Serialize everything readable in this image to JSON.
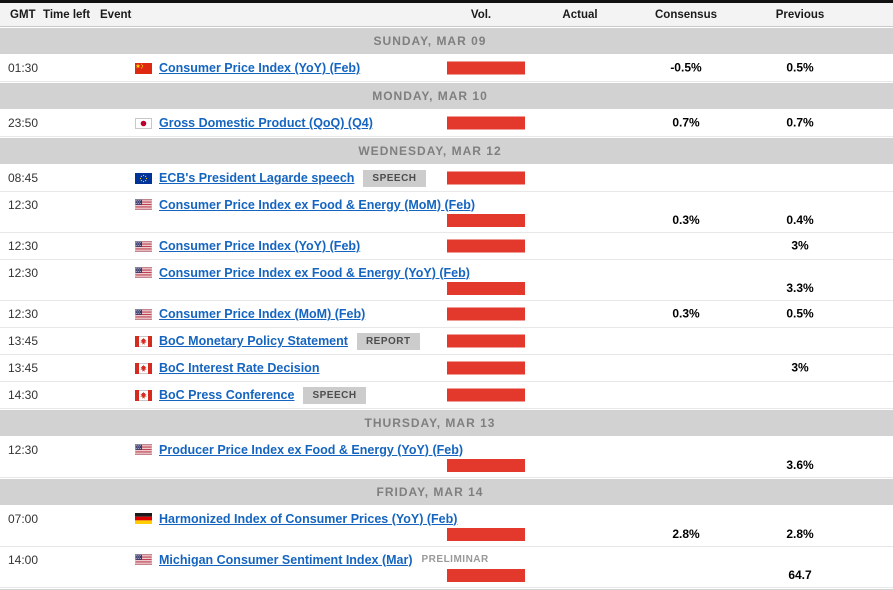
{
  "table": {
    "headers": {
      "gmt": "GMT",
      "time_left": "Time left",
      "event": "Event",
      "vol": "Vol.",
      "actual": "Actual",
      "consensus": "Consensus",
      "previous": "Previous"
    }
  },
  "colors": {
    "bar_red": "#e2392c",
    "link_blue": "#1565c0",
    "section_bg": "#d2d2d2",
    "section_text": "#7f7f7f",
    "header_bg": "#f3f3f3",
    "badge_bg": "#cccccc",
    "badge_text": "#4d4d4d",
    "prelim_text": "#999999"
  },
  "sections": [
    {
      "date": "SUNDAY, MAR 09",
      "rows": [
        {
          "time": "01:30",
          "country": "CN",
          "event": "Consumer Price Index (YoY) (Feb)",
          "badge": "",
          "badge_style": "",
          "tall": false,
          "actual": "",
          "consensus": "-0.5%",
          "previous": "0.5%"
        }
      ]
    },
    {
      "date": "MONDAY, MAR 10",
      "rows": [
        {
          "time": "23:50",
          "country": "JP",
          "event": "Gross Domestic Product (QoQ) (Q4)",
          "badge": "",
          "badge_style": "",
          "tall": false,
          "actual": "",
          "consensus": "0.7%",
          "previous": "0.7%"
        }
      ]
    },
    {
      "date": "WEDNESDAY, MAR 12",
      "rows": [
        {
          "time": "08:45",
          "country": "EU",
          "event": "ECB's President Lagarde speech",
          "badge": "SPEECH",
          "badge_style": "box",
          "tall": false,
          "actual": "",
          "consensus": "",
          "previous": ""
        },
        {
          "time": "12:30",
          "country": "US",
          "event": "Consumer Price Index ex Food & Energy (MoM) (Feb)",
          "badge": "",
          "badge_style": "",
          "tall": true,
          "actual": "",
          "consensus": "0.3%",
          "previous": "0.4%"
        },
        {
          "time": "12:30",
          "country": "US",
          "event": "Consumer Price Index (YoY) (Feb)",
          "badge": "",
          "badge_style": "",
          "tall": false,
          "actual": "",
          "consensus": "",
          "previous": "3%"
        },
        {
          "time": "12:30",
          "country": "US",
          "event": "Consumer Price Index ex Food & Energy (YoY) (Feb)",
          "badge": "",
          "badge_style": "",
          "tall": true,
          "actual": "",
          "consensus": "",
          "previous": "3.3%"
        },
        {
          "time": "12:30",
          "country": "US",
          "event": "Consumer Price Index (MoM) (Feb)",
          "badge": "",
          "badge_style": "",
          "tall": false,
          "actual": "",
          "consensus": "0.3%",
          "previous": "0.5%"
        },
        {
          "time": "13:45",
          "country": "CA",
          "event": "BoC Monetary Policy Statement",
          "badge": "REPORT",
          "badge_style": "box",
          "tall": false,
          "actual": "",
          "consensus": "",
          "previous": ""
        },
        {
          "time": "13:45",
          "country": "CA",
          "event": "BoC Interest Rate Decision",
          "badge": "",
          "badge_style": "",
          "tall": false,
          "actual": "",
          "consensus": "",
          "previous": "3%"
        },
        {
          "time": "14:30",
          "country": "CA",
          "event": "BoC Press Conference",
          "badge": "SPEECH",
          "badge_style": "box",
          "tall": false,
          "actual": "",
          "consensus": "",
          "previous": ""
        }
      ]
    },
    {
      "date": "THURSDAY, MAR 13",
      "rows": [
        {
          "time": "12:30",
          "country": "US",
          "event": "Producer Price Index ex Food & Energy (YoY) (Feb)",
          "badge": "",
          "badge_style": "",
          "tall": true,
          "actual": "",
          "consensus": "",
          "previous": "3.6%"
        }
      ]
    },
    {
      "date": "FRIDAY, MAR 14",
      "rows": [
        {
          "time": "07:00",
          "country": "DE",
          "event": "Harmonized Index of Consumer Prices (YoY) (Feb)",
          "badge": "",
          "badge_style": "",
          "tall": true,
          "actual": "",
          "consensus": "2.8%",
          "previous": "2.8%"
        },
        {
          "time": "14:00",
          "country": "US",
          "event": "Michigan Consumer Sentiment Index (Mar)",
          "badge": "PRELIMINAR",
          "badge_style": "text",
          "tall": true,
          "actual": "",
          "consensus": "",
          "previous": "64.7"
        }
      ]
    }
  ]
}
